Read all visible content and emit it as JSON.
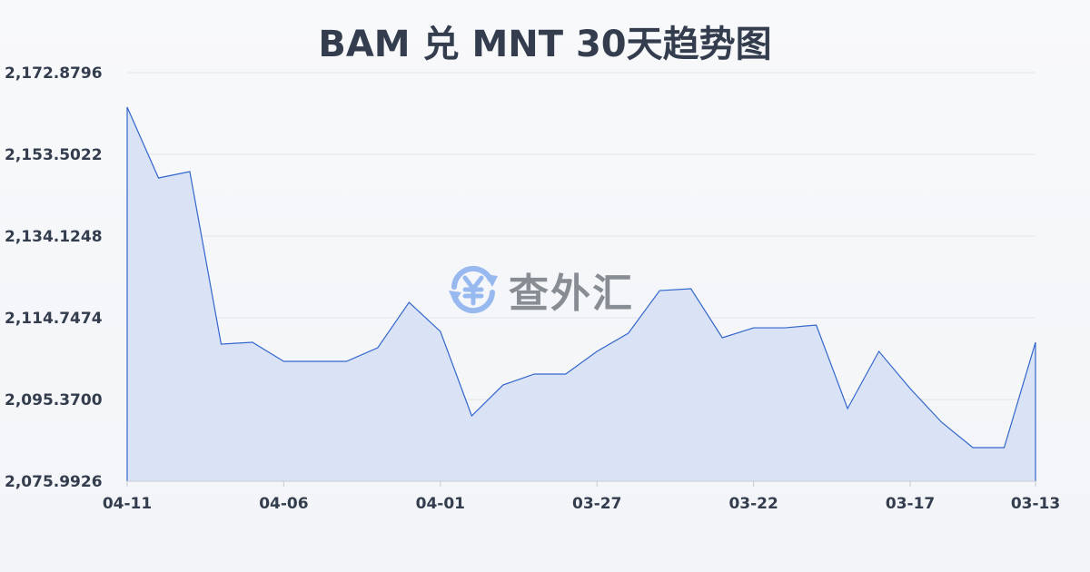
{
  "chart_data": {
    "type": "area",
    "title": "BAM 兑 MNT 30天趋势图",
    "xlabel": "",
    "ylabel": "",
    "x_tick_labels": [
      "04-11",
      "04-06",
      "04-01",
      "03-27",
      "03-22",
      "03-17",
      "03-13"
    ],
    "y_tick_labels": [
      "2,172.8796",
      "2,153.5022",
      "2,134.1248",
      "2,114.7474",
      "2,095.3700",
      "2,075.9926"
    ],
    "ylim": [
      2075.9926,
      2172.8796
    ],
    "x_order": "newest-to-oldest",
    "grid": true,
    "values": [
      2164.7,
      2147.9,
      2149.41,
      2108.5,
      2108.93,
      2104.41,
      2104.41,
      2104.41,
      2107.64,
      2118.4,
      2111.51,
      2091.49,
      2098.81,
      2101.4,
      2101.4,
      2106.78,
      2111.08,
      2121.2,
      2121.63,
      2110.01,
      2112.37,
      2112.37,
      2113.02,
      2093.22,
      2106.78,
      2097.95,
      2089.99,
      2083.96,
      2083.96,
      2108.93
    ],
    "colors": {
      "line": "#3366cc",
      "fill": "#d8e2f5",
      "grid": "#e2e5ea",
      "text": "#333d4d"
    }
  },
  "watermark": {
    "text": "查外汇",
    "icon": "yen-exchange-icon"
  }
}
